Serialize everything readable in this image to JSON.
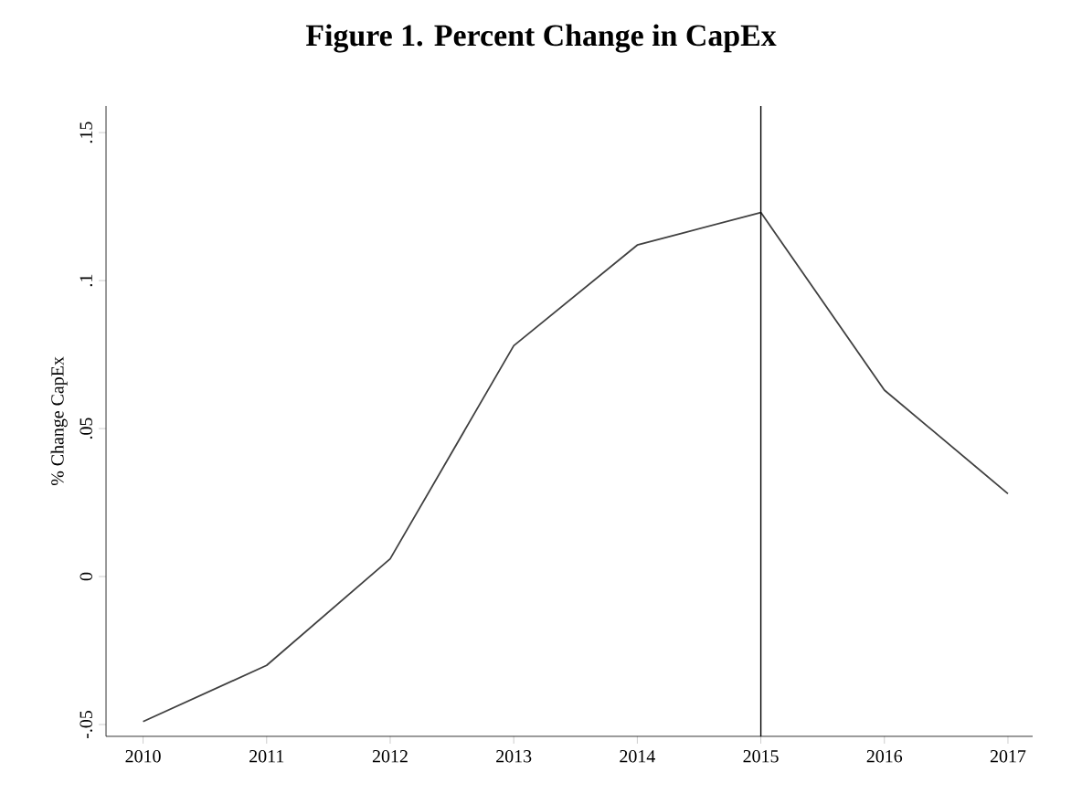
{
  "chart_data": {
    "type": "line",
    "title": "Figure 1.  Percent Change in CapEx",
    "ylabel": "% Change CapEx",
    "x": [
      2010,
      2011,
      2012,
      2013,
      2014,
      2015,
      2016,
      2017
    ],
    "series": [
      {
        "color": "#404040",
        "values": [
          -0.049,
          -0.03,
          0.006,
          0.078,
          0.112,
          0.123,
          0.063,
          0.028
        ]
      }
    ],
    "xlim": [
      2009.7,
      2017.2
    ],
    "ylim": [
      -0.054,
      0.159
    ],
    "xticks": [
      2010,
      2011,
      2012,
      2013,
      2014,
      2015,
      2016,
      2017
    ],
    "yticks": [
      {
        "value": -0.05,
        "label": "-.05"
      },
      {
        "value": 0,
        "label": "0"
      },
      {
        "value": 0.05,
        "label": ".05"
      },
      {
        "value": 0.1,
        "label": ".1"
      },
      {
        "value": 0.15,
        "label": ".15"
      }
    ],
    "ref_lines": [
      {
        "axis": "x",
        "value": 2015,
        "color": "#000000"
      }
    ],
    "grid": false,
    "marker": "none",
    "line_style": "solid"
  }
}
